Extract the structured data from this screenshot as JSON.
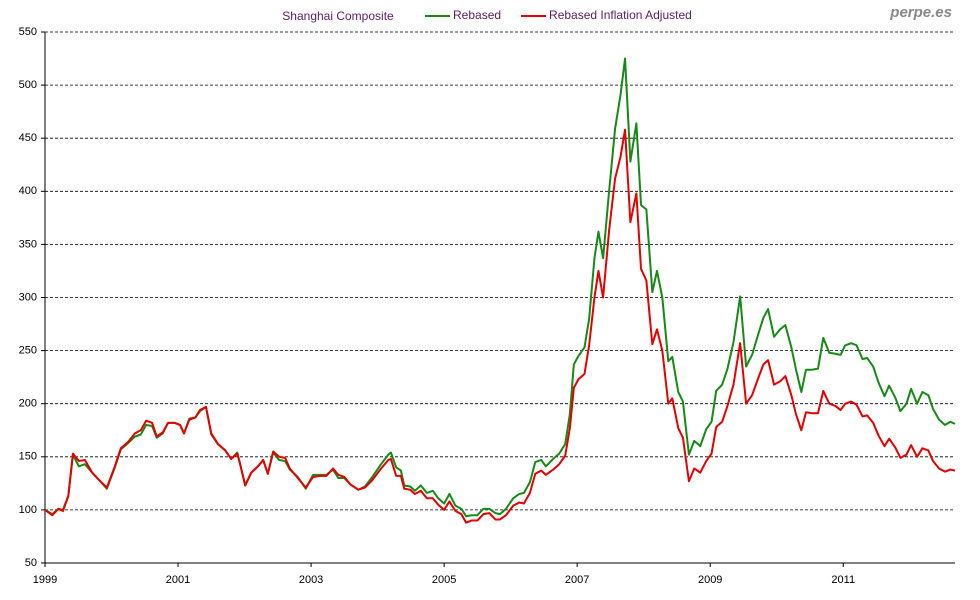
{
  "chart_data": {
    "type": "line",
    "title": "Shanghai Composite",
    "watermark": "perpe.es",
    "x": [
      1999.0,
      1999.11,
      1999.2,
      1999.27,
      1999.35,
      1999.42,
      1999.51,
      1999.6,
      1999.71,
      1999.83,
      1999.93,
      2000.05,
      2000.14,
      2000.25,
      2000.35,
      2000.44,
      2000.52,
      2000.61,
      2000.68,
      2000.77,
      2000.85,
      2000.95,
      2001.03,
      2001.09,
      2001.17,
      2001.26,
      2001.33,
      2001.42,
      2001.5,
      2001.6,
      2001.71,
      2001.8,
      2001.89,
      2001.93,
      2002.01,
      2002.1,
      2002.2,
      2002.28,
      2002.35,
      2002.43,
      2002.52,
      2002.61,
      2002.68,
      2002.8,
      2002.92,
      2003.03,
      2003.14,
      2003.23,
      2003.33,
      2003.41,
      2003.5,
      2003.59,
      2003.71,
      2003.81,
      2003.92,
      2004.04,
      2004.16,
      2004.2,
      2004.28,
      2004.35,
      2004.4,
      2004.49,
      2004.56,
      2004.65,
      2004.74,
      2004.83,
      2004.91,
      2005.0,
      2005.08,
      2005.17,
      2005.26,
      2005.33,
      2005.41,
      2005.5,
      2005.59,
      2005.68,
      2005.77,
      2005.84,
      2005.93,
      2006.04,
      2006.13,
      2006.2,
      2006.29,
      2006.37,
      2006.46,
      2006.53,
      2006.64,
      2006.73,
      2006.82,
      2006.89,
      2006.95,
      2007.02,
      2007.11,
      2007.18,
      2007.26,
      2007.32,
      2007.39,
      2007.48,
      2007.57,
      2007.65,
      2007.72,
      2007.8,
      2007.89,
      2007.96,
      2008.04,
      2008.13,
      2008.2,
      2008.28,
      2008.37,
      2008.43,
      2008.52,
      2008.59,
      2008.68,
      2008.76,
      2008.85,
      2008.94,
      2009.02,
      2009.09,
      2009.18,
      2009.26,
      2009.35,
      2009.45,
      2009.54,
      2009.63,
      2009.71,
      2009.8,
      2009.87,
      2009.96,
      2010.05,
      2010.13,
      2010.22,
      2010.29,
      2010.37,
      2010.44,
      2010.53,
      2010.62,
      2010.7,
      2010.79,
      2010.88,
      2010.96,
      2011.03,
      2011.12,
      2011.2,
      2011.29,
      2011.36,
      2011.45,
      2011.53,
      2011.62,
      2011.69,
      2011.78,
      2011.86,
      2011.95,
      2012.02,
      2012.11,
      2012.19,
      2012.28,
      2012.35,
      2012.44,
      2012.53,
      2012.61,
      2012.68
    ],
    "series": [
      {
        "name": "Rebased",
        "color": "#158a15",
        "values": [
          100,
          96,
          101,
          100,
          113,
          152,
          141,
          143,
          135,
          127,
          120,
          140,
          157,
          163,
          169,
          171,
          180,
          179,
          168,
          172,
          182,
          182,
          180,
          172,
          186,
          187,
          193,
          197,
          171,
          162,
          156,
          148,
          154,
          144,
          123,
          135,
          141,
          147,
          134,
          154,
          147,
          146,
          138,
          131,
          120,
          133,
          133,
          133,
          138,
          130,
          130,
          124,
          119,
          122,
          131,
          142,
          152,
          154,
          140,
          137,
          123,
          122,
          118,
          123,
          116,
          118,
          111,
          106,
          115,
          104,
          101,
          94,
          95,
          95,
          101,
          101,
          97,
          96,
          101,
          111,
          115,
          116,
          126,
          145,
          147,
          141,
          148,
          153,
          162,
          190,
          237,
          245,
          253,
          280,
          337,
          362,
          337,
          400,
          459,
          490,
          525,
          428,
          464,
          387,
          383,
          305,
          325,
          300,
          240,
          244,
          211,
          202,
          152,
          165,
          160,
          176,
          183,
          212,
          218,
          233,
          258,
          301,
          235,
          246,
          263,
          281,
          289,
          263,
          270,
          274,
          253,
          232,
          211,
          232,
          232,
          233,
          262,
          248,
          247,
          246,
          255,
          257,
          255,
          242,
          243,
          235,
          220,
          207,
          217,
          206,
          193,
          200,
          214,
          200,
          211,
          208,
          195,
          185,
          180,
          183,
          181
        ]
      },
      {
        "name": "Rebased Inflation Adjusted",
        "color": "#e80000",
        "values": [
          100,
          95,
          101,
          99,
          113,
          153,
          146,
          147,
          135,
          127,
          121,
          141,
          158,
          164,
          172,
          175,
          184,
          182,
          169,
          173,
          182,
          182,
          180,
          172,
          185,
          187,
          194,
          197,
          172,
          162,
          156,
          148,
          153,
          144,
          123,
          135,
          141,
          147,
          134,
          155,
          150,
          149,
          139,
          130,
          121,
          131,
          132,
          132,
          139,
          133,
          131,
          124,
          119,
          121,
          128,
          138,
          147,
          148,
          132,
          132,
          120,
          119,
          115,
          118,
          111,
          111,
          105,
          100,
          108,
          99,
          96,
          88,
          90,
          90,
          96,
          97,
          91,
          91,
          95,
          104,
          107,
          106,
          116,
          134,
          137,
          133,
          138,
          143,
          151,
          177,
          215,
          223,
          228,
          255,
          300,
          325,
          300,
          363,
          412,
          432,
          458,
          371,
          398,
          327,
          316,
          256,
          270,
          250,
          200,
          205,
          177,
          168,
          127,
          139,
          135,
          146,
          153,
          178,
          183,
          198,
          218,
          257,
          200,
          208,
          222,
          237,
          241,
          218,
          221,
          226,
          208,
          190,
          175,
          192,
          191,
          191,
          212,
          200,
          198,
          194,
          200,
          202,
          199,
          188,
          189,
          182,
          170,
          160,
          167,
          159,
          149,
          152,
          161,
          150,
          158,
          156,
          146,
          139,
          136,
          138,
          137
        ]
      }
    ],
    "xlim": [
      1999,
      2012.68
    ],
    "xticks": [
      1999,
      2001,
      2003,
      2005,
      2007,
      2009,
      2011
    ],
    "ylim": [
      50,
      550
    ],
    "yticks": [
      50,
      100,
      150,
      200,
      250,
      300,
      350,
      400,
      450,
      500,
      550
    ],
    "grid": true,
    "legend": "top"
  }
}
